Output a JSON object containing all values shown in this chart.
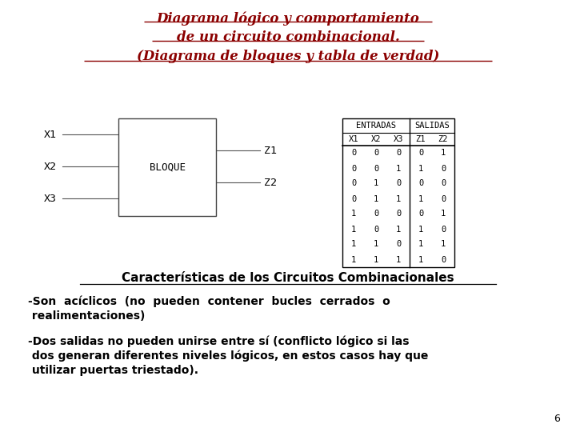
{
  "title_line1": "Diagrama lógico y comportamiento",
  "title_line2": "de un circuito combinacional.",
  "title_line3": "(Diagrama de bloques y tabla de verdad)",
  "title_color": "#8B0000",
  "block_label": "BLOQUE",
  "inputs": [
    "X1",
    "X2",
    "X3"
  ],
  "outputs": [
    "Z1",
    "Z2"
  ],
  "table_header_entradas": "ENTRADAS",
  "table_header_salidas": "SALIDAS",
  "table_sub_header": [
    "X1",
    "X2",
    "X3",
    "Z1",
    "Z2"
  ],
  "table_data": [
    [
      0,
      0,
      0,
      0,
      1
    ],
    [
      0,
      0,
      1,
      1,
      0
    ],
    [
      0,
      1,
      0,
      0,
      0
    ],
    [
      0,
      1,
      1,
      1,
      0
    ],
    [
      1,
      0,
      0,
      0,
      1
    ],
    [
      1,
      0,
      1,
      1,
      0
    ],
    [
      1,
      1,
      0,
      1,
      1
    ],
    [
      1,
      1,
      1,
      1,
      0
    ]
  ],
  "section_title": "Características de los Circuitos Combinacionales",
  "bullet1_line1": "-Son  acíclicos  (no  pueden  contener  bucles  cerrados  o",
  "bullet1_line2": " realimentaciones)",
  "bullet2_line1": "-Dos salidas no pueden unirse entre sí (conflicto lógico si las",
  "bullet2_line2": " dos generan diferentes niveles lógicos, en estos casos hay que",
  "bullet2_line3": " utilizar puertas triestado).",
  "page_number": "6",
  "bg_color": "#ffffff"
}
